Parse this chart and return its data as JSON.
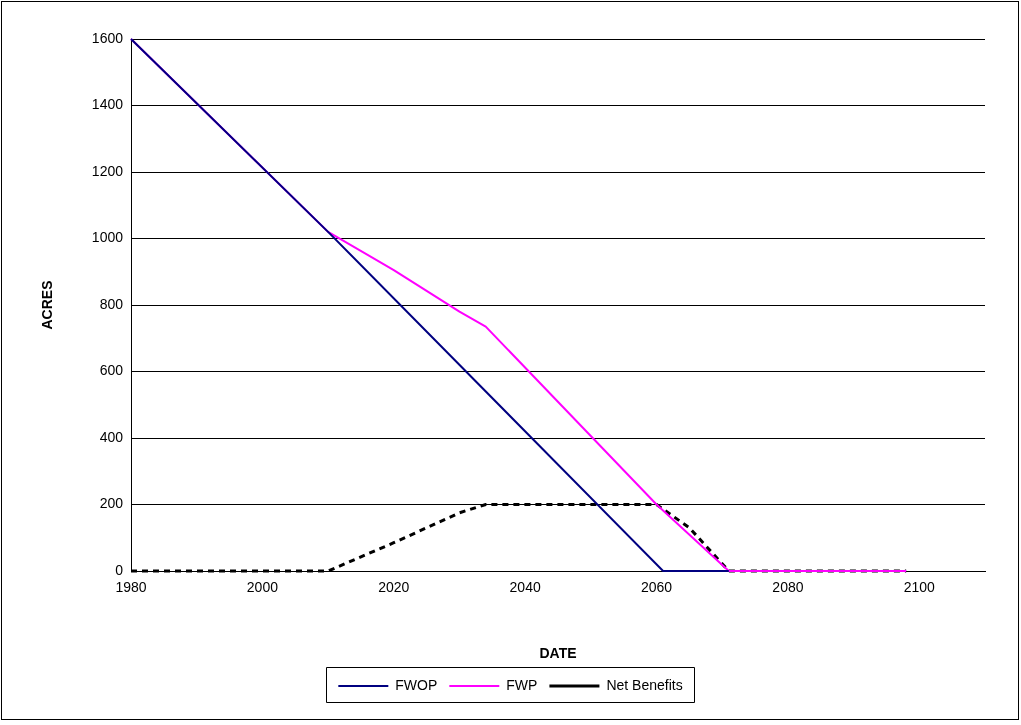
{
  "chart_data": {
    "type": "line",
    "xlabel": "DATE",
    "ylabel": "ACRES",
    "xlim": [
      1980,
      2110
    ],
    "xticks": [
      1980,
      2000,
      2020,
      2040,
      2060,
      2080,
      2100
    ],
    "ylim": [
      0,
      1600
    ],
    "yticks": [
      0,
      200,
      400,
      600,
      800,
      1000,
      1200,
      1400,
      1600
    ],
    "grid": "y",
    "legend": "bottom",
    "marker": "none",
    "series": [
      {
        "name": "FWOP",
        "color": "#000080",
        "line_style": "solid",
        "x": [
          1980,
          2010,
          2061,
          2071
        ],
        "values": [
          1600,
          1020,
          0,
          0
        ]
      },
      {
        "name": "FWP",
        "color": "#ff00ff",
        "line_style": "solid",
        "x": [
          1980,
          2010,
          2020,
          2030,
          2034,
          2060,
          2071,
          2098
        ],
        "values": [
          1600,
          1020,
          905,
          780,
          735,
          200,
          0,
          0
        ]
      },
      {
        "name": "Net Benefits",
        "color": "#000000",
        "line_style": "dashed",
        "x": [
          1980,
          2010,
          2020,
          2030,
          2034,
          2060,
          2065,
          2071,
          2098
        ],
        "values": [
          0,
          0,
          85,
          175,
          200,
          200,
          130,
          0,
          0
        ]
      }
    ]
  }
}
